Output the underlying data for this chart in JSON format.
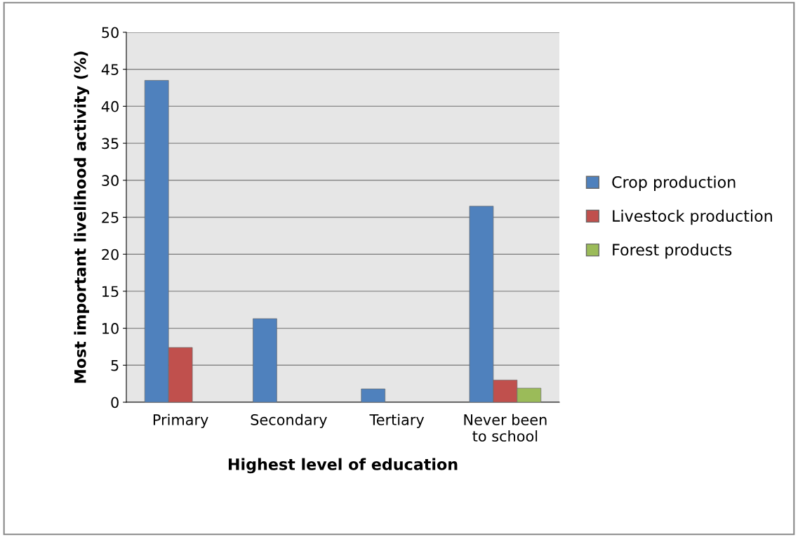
{
  "chart_data": {
    "type": "bar",
    "xlabel": "Highest level of education",
    "ylabel": "Most important livelihood activity (%)",
    "categories": [
      "Primary",
      "Secondary",
      "Tertiary",
      "Never been\nto school"
    ],
    "series": [
      {
        "name": "Crop production",
        "color": "#4f81bd",
        "values": [
          43.5,
          11.3,
          1.8,
          26.5
        ]
      },
      {
        "name": "Livestock production",
        "color": "#c0504d",
        "values": [
          7.4,
          null,
          null,
          3.0
        ]
      },
      {
        "name": "Forest products",
        "color": "#9bbb59",
        "values": [
          null,
          null,
          null,
          1.9
        ]
      }
    ],
    "ylim": [
      0,
      50
    ],
    "yticks": [
      0,
      5,
      10,
      15,
      20,
      25,
      30,
      35,
      40,
      45,
      50
    ],
    "grid": "y",
    "legend": "right"
  }
}
